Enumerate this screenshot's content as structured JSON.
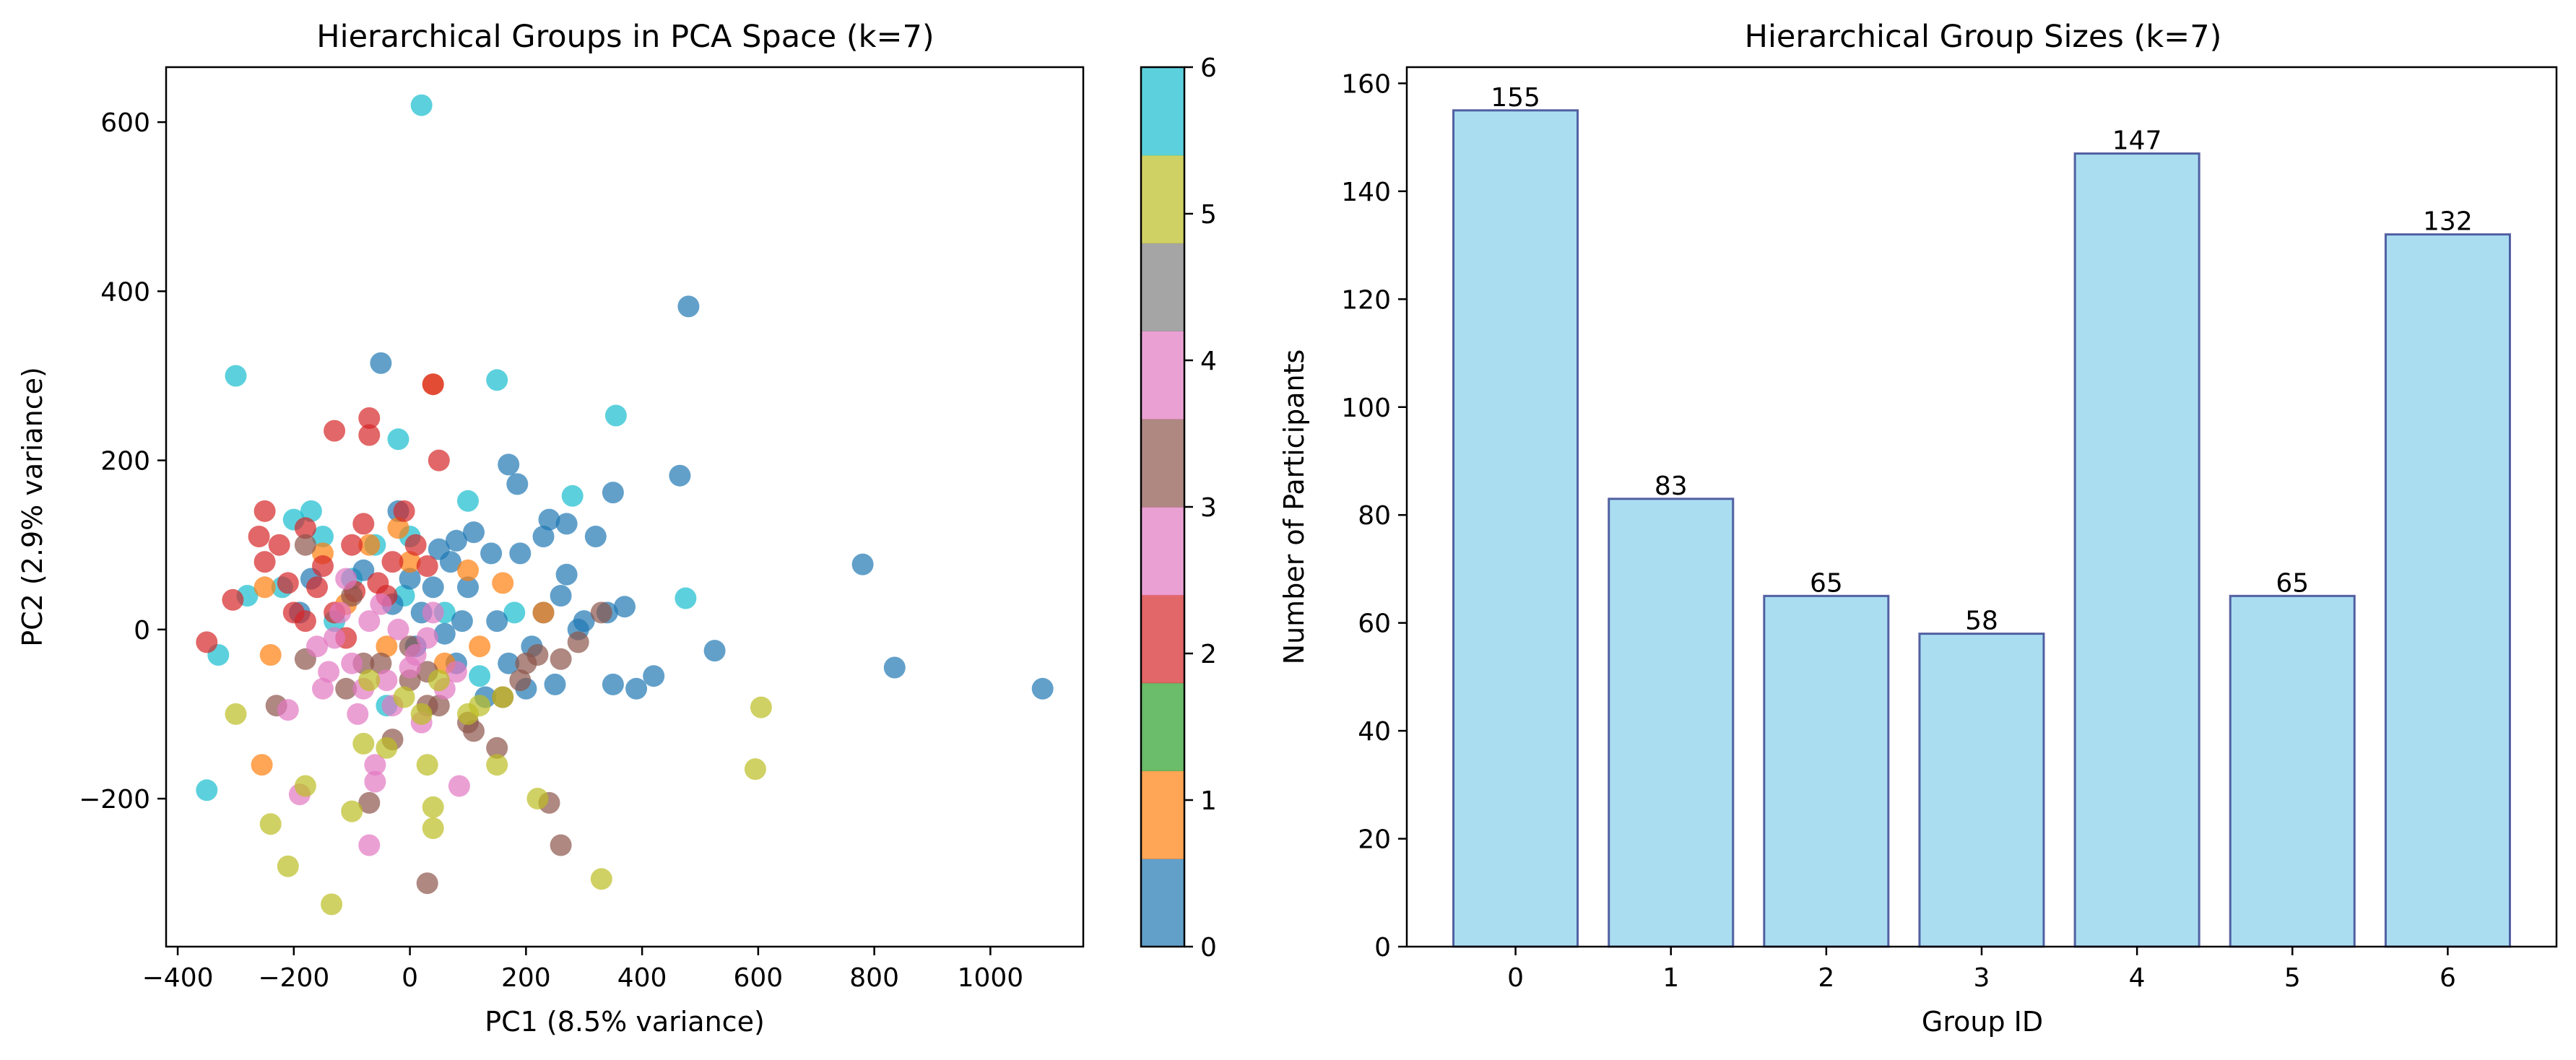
{
  "chart_data": [
    {
      "type": "scatter",
      "title": "Hierarchical Groups in PCA Space (k=7)",
      "xlabel": "PC1 (8.5% variance)",
      "ylabel": "PC2 (2.9% variance)",
      "xlim": [
        -420,
        1160
      ],
      "ylim": [
        -375,
        665
      ],
      "xticks": [
        -400,
        -200,
        0,
        200,
        400,
        600,
        800,
        1000
      ],
      "yticks": [
        -200,
        0,
        200,
        400,
        600
      ],
      "xtick_labels": [
        "−400",
        "−200",
        "0",
        "200",
        "400",
        "600",
        "800",
        "1000"
      ],
      "ytick_labels": [
        "−200",
        "0",
        "200",
        "400",
        "600"
      ],
      "grid": false,
      "colormap": "tab10",
      "group_colors": [
        "#1f77b4",
        "#ff7f0e",
        "#2ca02c",
        "#d62728",
        "#9467bd",
        "#8c564b",
        "#e377c2",
        "#7f7f7f",
        "#bcbd22",
        "#17becf"
      ],
      "colorbar": {
        "min": 0,
        "max": 6,
        "ticks": [
          "0",
          "1",
          "2",
          "3",
          "4",
          "5",
          "6"
        ],
        "segment_colors": [
          "#1f77b4",
          "#ff7f0e",
          "#2ca02c",
          "#d62728",
          "#e377c2",
          "#8c564b",
          "#e377c2",
          "#7f7f7f",
          "#bcbd22",
          "#17becf"
        ]
      },
      "points": [
        [
          20,
          620,
          9
        ],
        [
          -300,
          300,
          9
        ],
        [
          150,
          295,
          9
        ],
        [
          355,
          253,
          9
        ],
        [
          -20,
          225,
          9
        ],
        [
          100,
          152,
          9
        ],
        [
          280,
          158,
          9
        ],
        [
          475,
          37,
          9
        ],
        [
          -330,
          -30,
          9
        ],
        [
          -350,
          -190,
          9
        ],
        [
          -170,
          140,
          9
        ],
        [
          -200,
          130,
          9
        ],
        [
          -150,
          110,
          9
        ],
        [
          -100,
          60,
          9
        ],
        [
          -60,
          100,
          9
        ],
        [
          0,
          110,
          9
        ],
        [
          60,
          20,
          9
        ],
        [
          120,
          -55,
          9
        ],
        [
          -40,
          -90,
          9
        ],
        [
          -280,
          40,
          9
        ],
        [
          -130,
          10,
          9
        ],
        [
          -10,
          40,
          9
        ],
        [
          180,
          20,
          9
        ],
        [
          -220,
          50,
          9
        ],
        [
          480,
          382,
          0
        ],
        [
          -50,
          315,
          0
        ],
        [
          170,
          195,
          0
        ],
        [
          185,
          172,
          0
        ],
        [
          465,
          182,
          0
        ],
        [
          350,
          162,
          0
        ],
        [
          780,
          77,
          0
        ],
        [
          835,
          -45,
          0
        ],
        [
          1090,
          -70,
          0
        ],
        [
          525,
          -25,
          0
        ],
        [
          420,
          -55,
          0
        ],
        [
          390,
          -70,
          0
        ],
        [
          350,
          -65,
          0
        ],
        [
          370,
          27,
          0
        ],
        [
          340,
          20,
          0
        ],
        [
          320,
          110,
          0
        ],
        [
          240,
          130,
          0
        ],
        [
          270,
          125,
          0
        ],
        [
          230,
          110,
          0
        ],
        [
          270,
          65,
          0
        ],
        [
          110,
          115,
          0
        ],
        [
          80,
          105,
          0
        ],
        [
          190,
          90,
          0
        ],
        [
          140,
          90,
          0
        ],
        [
          70,
          80,
          0
        ],
        [
          40,
          50,
          0
        ],
        [
          0,
          60,
          0
        ],
        [
          -30,
          30,
          0
        ],
        [
          20,
          20,
          0
        ],
        [
          90,
          10,
          0
        ],
        [
          150,
          10,
          0
        ],
        [
          210,
          -20,
          0
        ],
        [
          200,
          -70,
          0
        ],
        [
          250,
          -65,
          0
        ],
        [
          170,
          -40,
          0
        ],
        [
          130,
          -80,
          0
        ],
        [
          80,
          -40,
          0
        ],
        [
          60,
          -5,
          0
        ],
        [
          -20,
          140,
          0
        ],
        [
          -80,
          70,
          0
        ],
        [
          50,
          95,
          0
        ],
        [
          -170,
          60,
          0
        ],
        [
          -190,
          20,
          0
        ],
        [
          10,
          -20,
          0
        ],
        [
          100,
          50,
          0
        ],
        [
          260,
          40,
          0
        ],
        [
          290,
          0,
          0
        ],
        [
          230,
          20,
          0
        ],
        [
          300,
          10,
          0
        ],
        [
          -240,
          -30,
          1
        ],
        [
          -255,
          -160,
          1
        ],
        [
          40,
          290,
          1
        ],
        [
          -20,
          120,
          1
        ],
        [
          -70,
          100,
          1
        ],
        [
          0,
          80,
          1
        ],
        [
          100,
          70,
          1
        ],
        [
          160,
          55,
          1
        ],
        [
          230,
          20,
          1
        ],
        [
          -150,
          90,
          1
        ],
        [
          -250,
          50,
          1
        ],
        [
          60,
          -40,
          1
        ],
        [
          120,
          -20,
          1
        ],
        [
          -40,
          -20,
          1
        ],
        [
          -110,
          30,
          1
        ],
        [
          -70,
          250,
          3
        ],
        [
          -70,
          230,
          3
        ],
        [
          -130,
          235,
          3
        ],
        [
          50,
          200,
          3
        ],
        [
          -10,
          140,
          3
        ],
        [
          -250,
          140,
          3
        ],
        [
          -260,
          110,
          3
        ],
        [
          -225,
          100,
          3
        ],
        [
          -250,
          80,
          3
        ],
        [
          -210,
          55,
          3
        ],
        [
          -305,
          35,
          3
        ],
        [
          -350,
          -15,
          3
        ],
        [
          -180,
          120,
          3
        ],
        [
          -180,
          10,
          3
        ],
        [
          -100,
          100,
          3
        ],
        [
          -80,
          125,
          3
        ],
        [
          -150,
          75,
          3
        ],
        [
          -95,
          45,
          3
        ],
        [
          -55,
          55,
          3
        ],
        [
          -130,
          20,
          3
        ],
        [
          -30,
          80,
          3
        ],
        [
          10,
          100,
          3
        ],
        [
          30,
          75,
          3
        ],
        [
          -200,
          20,
          3
        ],
        [
          -110,
          -10,
          3
        ],
        [
          -160,
          50,
          3
        ],
        [
          -40,
          40,
          3
        ],
        [
          40,
          290,
          3
        ],
        [
          -230,
          -90,
          5
        ],
        [
          -180,
          -35,
          5
        ],
        [
          -110,
          -70,
          5
        ],
        [
          -50,
          -40,
          5
        ],
        [
          0,
          -60,
          5
        ],
        [
          50,
          -90,
          5
        ],
        [
          100,
          -110,
          5
        ],
        [
          150,
          -140,
          5
        ],
        [
          190,
          -60,
          5
        ],
        [
          220,
          -30,
          5
        ],
        [
          260,
          -35,
          5
        ],
        [
          290,
          -15,
          5
        ],
        [
          330,
          20,
          5
        ],
        [
          240,
          -205,
          5
        ],
        [
          260,
          -255,
          5
        ],
        [
          30,
          -300,
          5
        ],
        [
          -70,
          -205,
          5
        ],
        [
          -30,
          -130,
          5
        ],
        [
          30,
          -90,
          5
        ],
        [
          -80,
          -40,
          5
        ],
        [
          110,
          -120,
          5
        ],
        [
          160,
          -80,
          5
        ],
        [
          200,
          -40,
          5
        ],
        [
          0,
          -20,
          5
        ],
        [
          -100,
          40,
          5
        ],
        [
          -180,
          100,
          5
        ],
        [
          30,
          -50,
          5
        ],
        [
          -60,
          -160,
          6
        ],
        [
          -60,
          -180,
          6
        ],
        [
          -70,
          -255,
          6
        ],
        [
          -190,
          -195,
          6
        ],
        [
          -210,
          -95,
          6
        ],
        [
          85,
          -185,
          6
        ],
        [
          -150,
          -70,
          6
        ],
        [
          -100,
          -40,
          6
        ],
        [
          -40,
          -60,
          6
        ],
        [
          10,
          -30,
          6
        ],
        [
          60,
          -70,
          6
        ],
        [
          -130,
          -10,
          6
        ],
        [
          -70,
          10,
          6
        ],
        [
          -20,
          0,
          6
        ],
        [
          40,
          20,
          6
        ],
        [
          -160,
          -20,
          6
        ],
        [
          -30,
          -90,
          6
        ],
        [
          20,
          -110,
          6
        ],
        [
          -90,
          -100,
          6
        ],
        [
          80,
          -50,
          6
        ],
        [
          -110,
          60,
          6
        ],
        [
          -50,
          30,
          6
        ],
        [
          0,
          -45,
          6
        ],
        [
          -140,
          -50,
          6
        ],
        [
          30,
          -10,
          6
        ],
        [
          -80,
          -70,
          6
        ],
        [
          -120,
          20,
          6
        ],
        [
          -300,
          -100,
          8
        ],
        [
          -240,
          -230,
          8
        ],
        [
          -210,
          -280,
          8
        ],
        [
          -135,
          -325,
          8
        ],
        [
          -180,
          -185,
          8
        ],
        [
          -100,
          -215,
          8
        ],
        [
          30,
          -160,
          8
        ],
        [
          40,
          -210,
          8
        ],
        [
          40,
          -235,
          8
        ],
        [
          150,
          -160,
          8
        ],
        [
          220,
          -200,
          8
        ],
        [
          330,
          -295,
          8
        ],
        [
          595,
          -165,
          8
        ],
        [
          605,
          -92,
          8
        ],
        [
          -80,
          -135,
          8
        ],
        [
          -10,
          -80,
          8
        ],
        [
          100,
          -100,
          8
        ],
        [
          50,
          -60,
          8
        ],
        [
          20,
          -100,
          8
        ],
        [
          -40,
          -140,
          8
        ],
        [
          160,
          -80,
          8
        ],
        [
          120,
          -90,
          8
        ],
        [
          -70,
          -60,
          8
        ]
      ]
    },
    {
      "type": "bar",
      "title": "Hierarchical Group Sizes (k=7)",
      "xlabel": "Group ID",
      "ylabel": "Number of Participants",
      "categories": [
        "0",
        "1",
        "2",
        "3",
        "4",
        "5",
        "6"
      ],
      "values": [
        155,
        83,
        65,
        58,
        147,
        65,
        132
      ],
      "value_labels": [
        "155",
        "83",
        "65",
        "58",
        "147",
        "65",
        "132"
      ],
      "ylim": [
        0,
        163
      ],
      "yticks": [
        0,
        20,
        40,
        60,
        80,
        100,
        120,
        140,
        160
      ],
      "ytick_labels": [
        "0",
        "20",
        "40",
        "60",
        "80",
        "100",
        "120",
        "140",
        "160"
      ],
      "grid": false,
      "bar_color": "#87CEEB",
      "edge_color": "#1a237e"
    }
  ]
}
